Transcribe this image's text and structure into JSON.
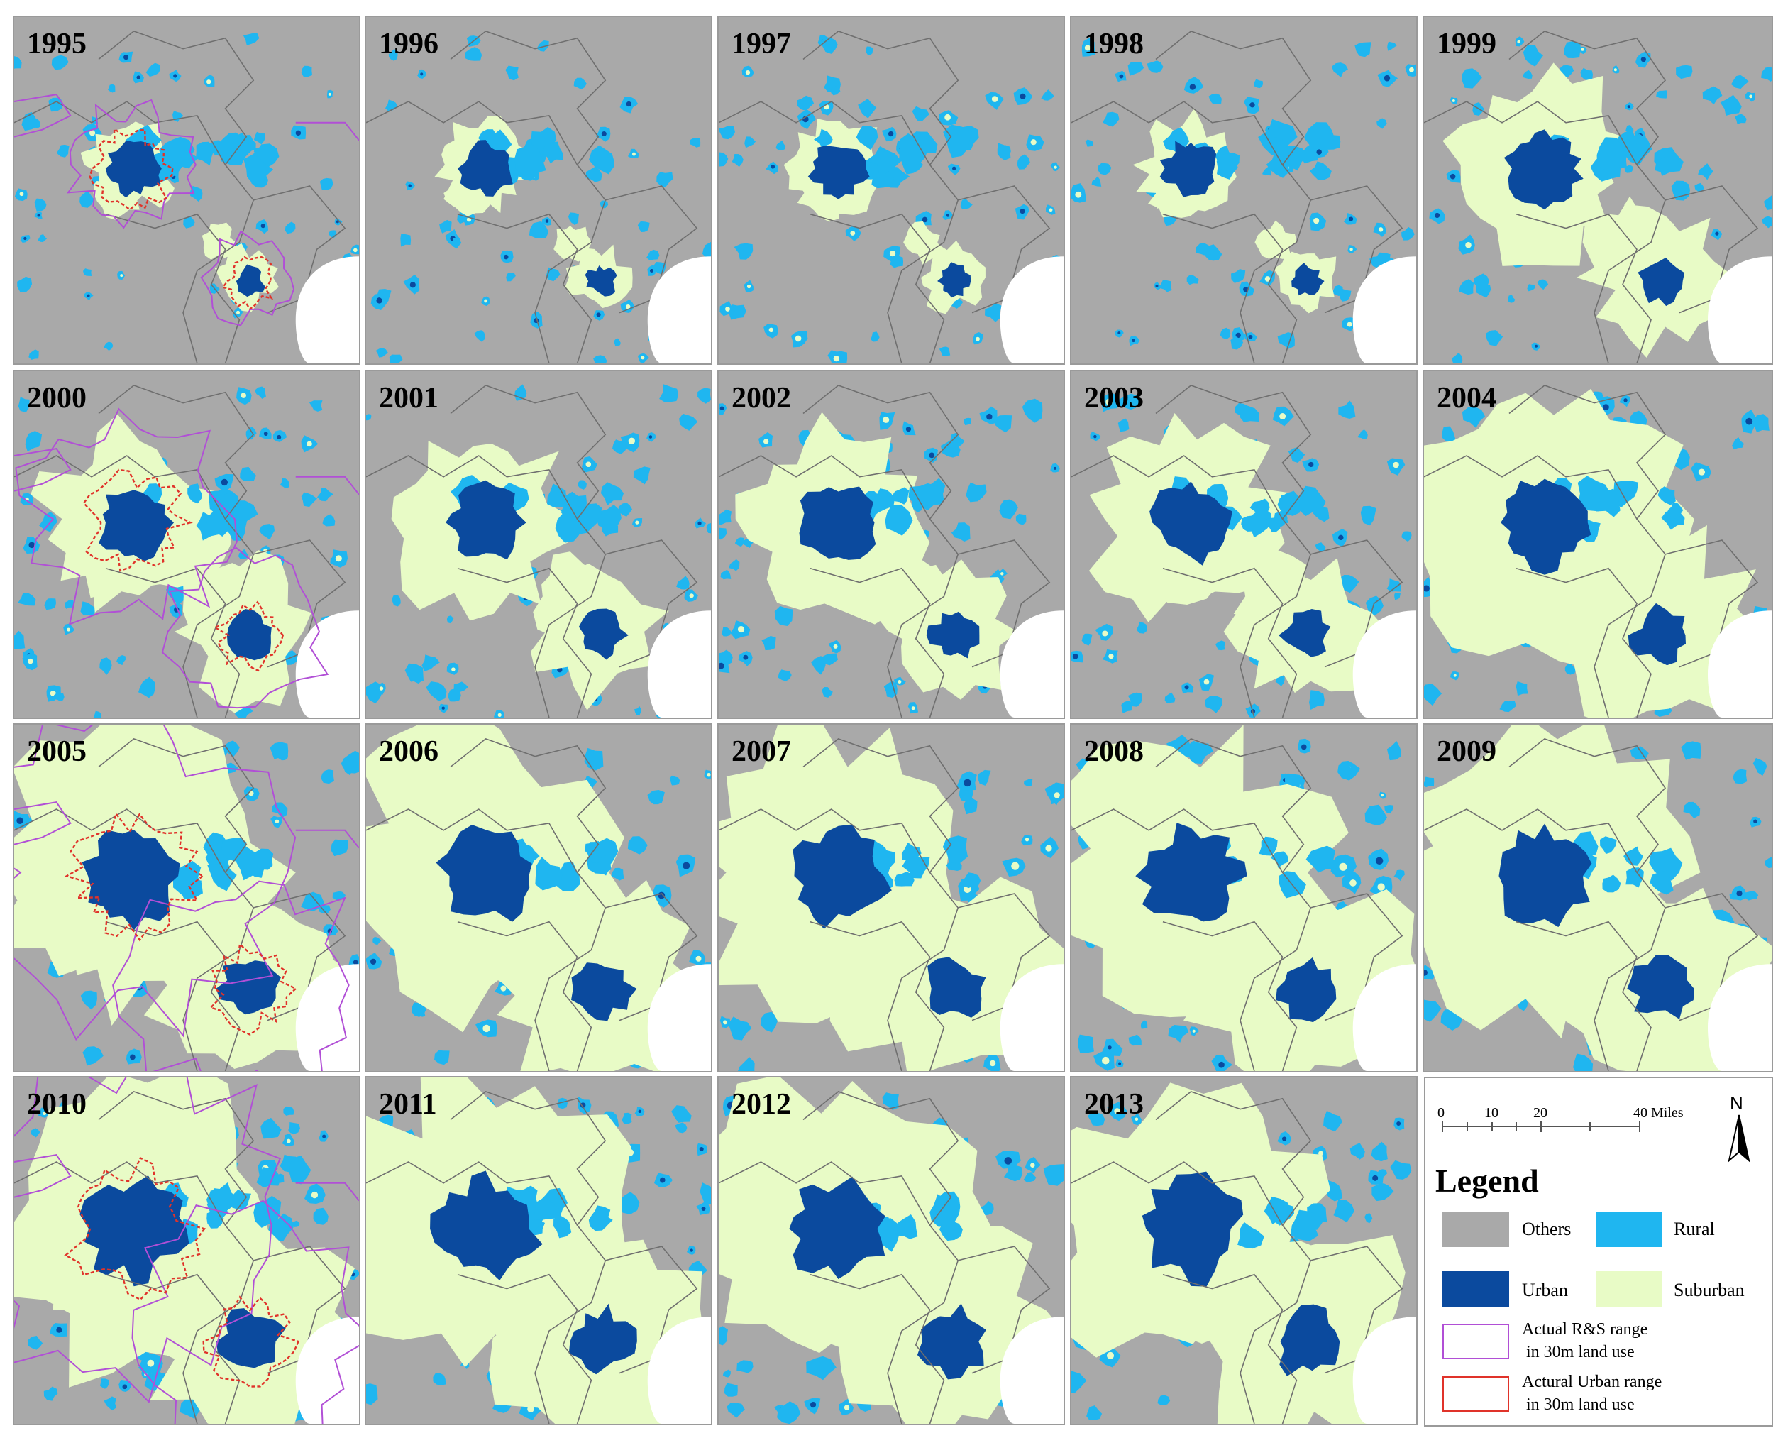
{
  "years": [
    "1995",
    "1996",
    "1997",
    "1998",
    "1999",
    "2000",
    "2001",
    "2002",
    "2003",
    "2004",
    "2005",
    "2006",
    "2007",
    "2008",
    "2009",
    "2010",
    "2011",
    "2012",
    "2013"
  ],
  "colors": {
    "others": "#a9a9a9",
    "rural": "#1fb6f0",
    "urban": "#0b4a9e",
    "suburban": "#e8fbc6",
    "rs_outline": "#b14fd6",
    "urban_outline": "#e0332a",
    "boundary": "#6f6f6f",
    "sea": "#ffffff"
  },
  "legend": {
    "title": "Legend",
    "north": "N",
    "scale_ticks": [
      "0",
      "10",
      "20",
      "40 Miles"
    ],
    "items": {
      "others": "Others",
      "rural": "Rural",
      "urban": "Urban",
      "suburban": "Suburban",
      "rs_range_1": "Actual R&S range",
      "rs_range_2": "in 30m land use",
      "urban_range_1": "Actural Urban range",
      "urban_range_2": "in 30m land use"
    }
  }
}
